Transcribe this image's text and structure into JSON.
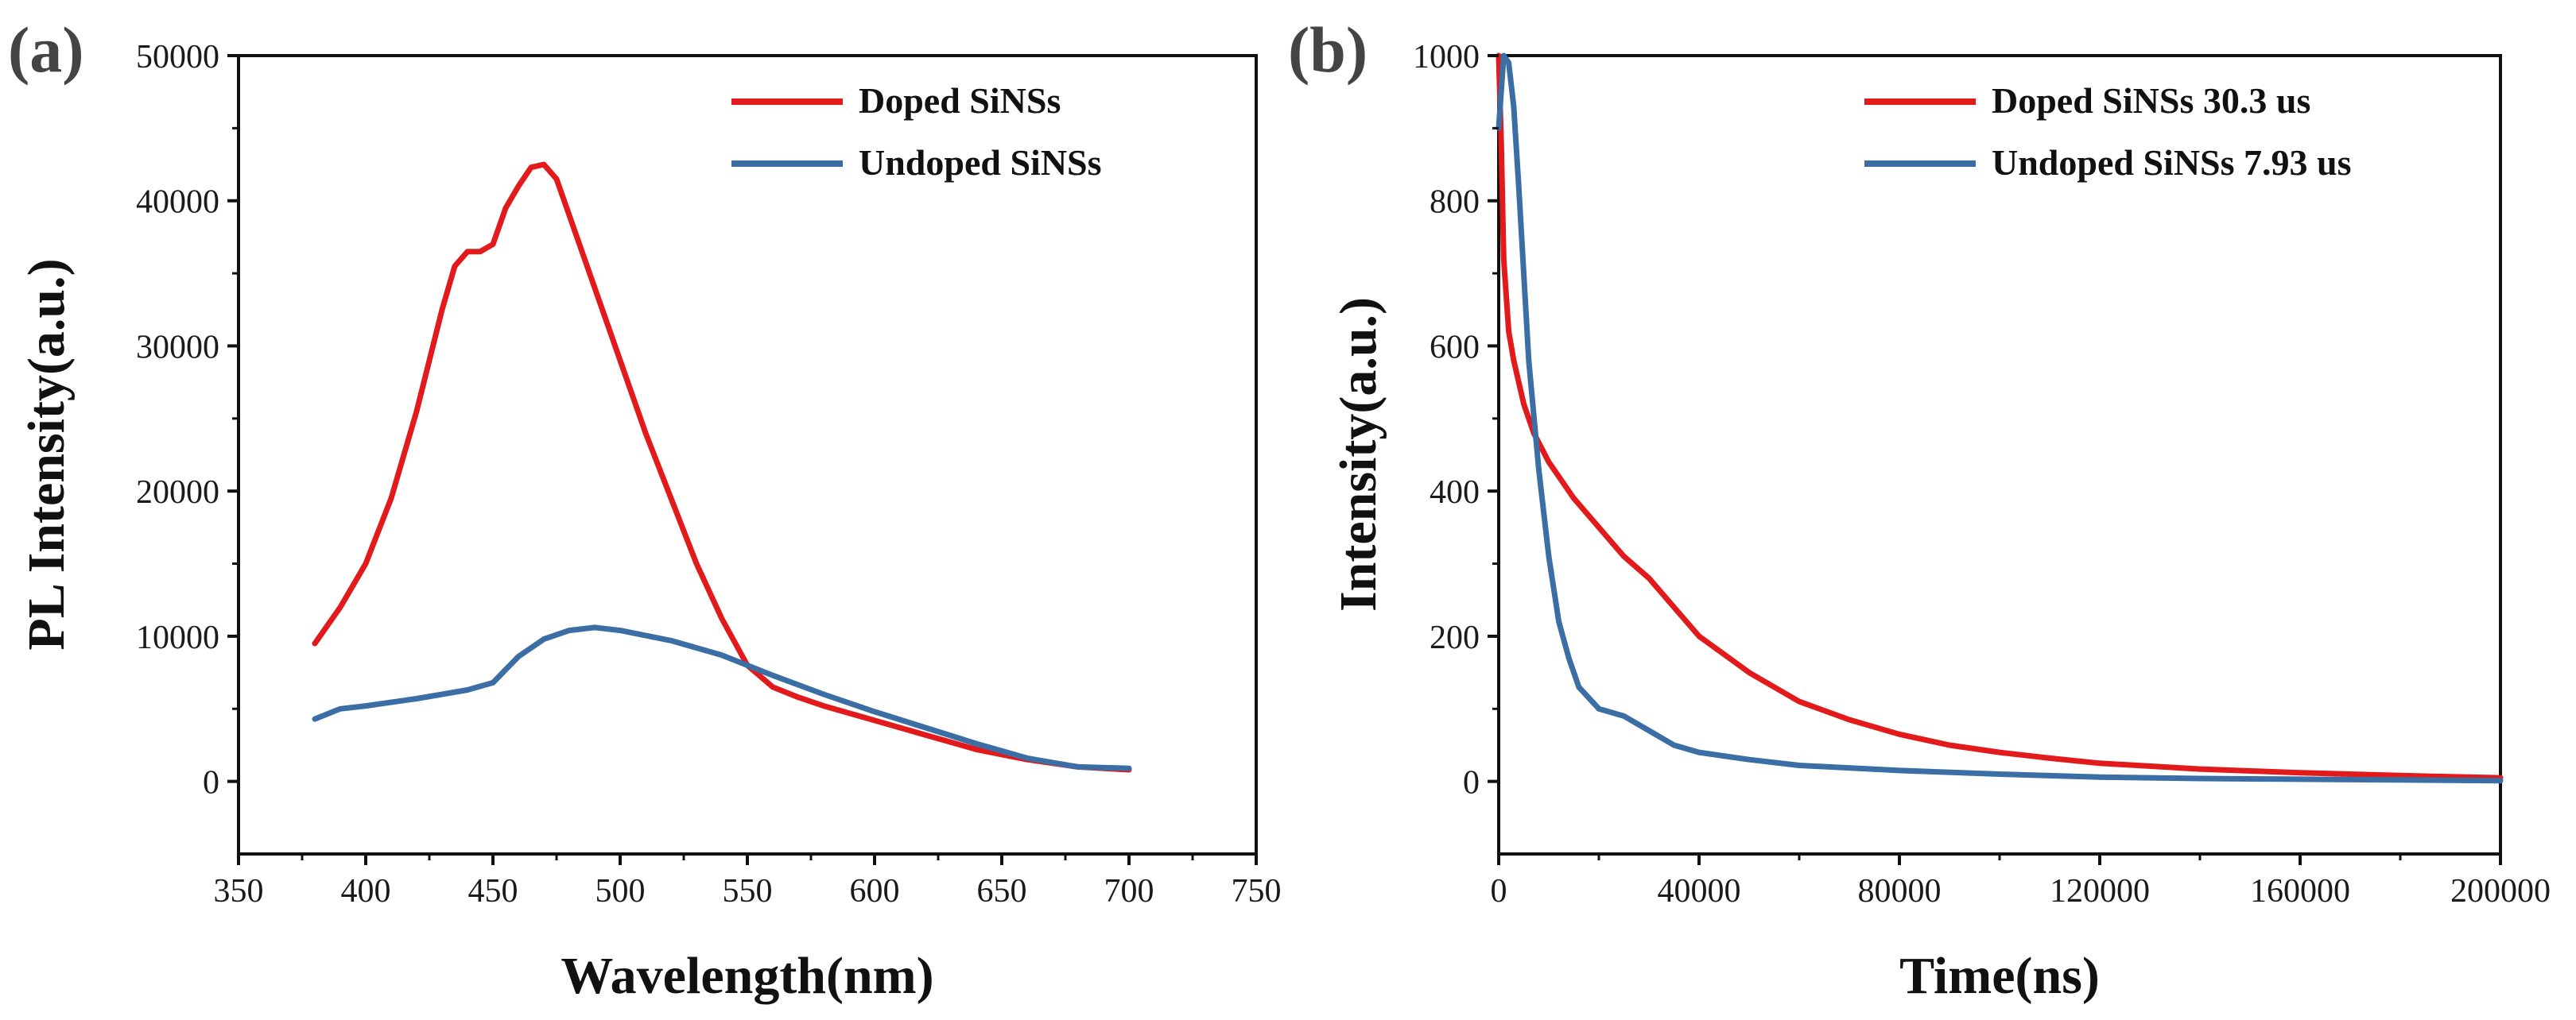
{
  "chart_data": [
    {
      "type": "line",
      "panel_label": "(a)",
      "xlabel": "Wavelength(nm)",
      "ylabel": "PL Intensity(a.u.)",
      "xlim": [
        350,
        750
      ],
      "ylim": [
        -5000,
        50000
      ],
      "xticks": [
        350,
        400,
        450,
        500,
        550,
        600,
        650,
        700,
        750
      ],
      "yticks": [
        0,
        10000,
        20000,
        30000,
        40000,
        50000
      ],
      "legend_position": "top-right",
      "series": [
        {
          "name": "Doped SiNSs",
          "color": "#e31a1c",
          "x": [
            380,
            390,
            400,
            410,
            420,
            430,
            435,
            440,
            445,
            450,
            455,
            460,
            465,
            470,
            475,
            480,
            490,
            500,
            510,
            520,
            530,
            540,
            550,
            560,
            570,
            580,
            600,
            620,
            640,
            660,
            680,
            700
          ],
          "y": [
            9500,
            12000,
            15000,
            19500,
            25500,
            32500,
            35500,
            36500,
            36500,
            37000,
            39500,
            41000,
            42300,
            42500,
            41500,
            39000,
            34000,
            29000,
            24000,
            19500,
            15000,
            11200,
            8000,
            6500,
            5800,
            5200,
            4200,
            3200,
            2200,
            1500,
            1000,
            800
          ]
        },
        {
          "name": "Undoped SiNSs",
          "color": "#3a6ea5",
          "x": [
            380,
            390,
            400,
            420,
            440,
            450,
            460,
            470,
            480,
            490,
            500,
            520,
            540,
            560,
            580,
            600,
            620,
            640,
            660,
            680,
            700
          ],
          "y": [
            4300,
            5000,
            5200,
            5700,
            6300,
            6800,
            8600,
            9800,
            10400,
            10600,
            10400,
            9700,
            8700,
            7300,
            6000,
            4800,
            3700,
            2600,
            1600,
            1000,
            900
          ]
        }
      ]
    },
    {
      "type": "line",
      "panel_label": "(b)",
      "xlabel": "Time(ns)",
      "ylabel": "Intensity(a.u.)",
      "xlim": [
        0,
        200000
      ],
      "ylim": [
        -100,
        1000
      ],
      "xticks": [
        0,
        40000,
        80000,
        120000,
        160000,
        200000
      ],
      "yticks": [
        0,
        200,
        400,
        600,
        800,
        1000
      ],
      "legend_position": "top-right",
      "series": [
        {
          "name": "Doped SiNSs 30.3 us",
          "color": "#e31a1c",
          "x": [
            0,
            500,
            1000,
            2000,
            3000,
            5000,
            7000,
            10000,
            15000,
            20000,
            25000,
            30000,
            35000,
            40000,
            50000,
            60000,
            70000,
            80000,
            90000,
            100000,
            110000,
            120000,
            140000,
            160000,
            180000,
            200000
          ],
          "y": [
            1000,
            880,
            720,
            620,
            580,
            520,
            480,
            440,
            390,
            350,
            310,
            280,
            240,
            200,
            150,
            110,
            85,
            65,
            50,
            40,
            32,
            25,
            17,
            12,
            8,
            5
          ]
        },
        {
          "name": "Undoped SiNSs 7.93 us",
          "color": "#3a6ea5",
          "x": [
            0,
            1000,
            2000,
            3000,
            4000,
            5000,
            6000,
            8000,
            10000,
            12000,
            14000,
            16000,
            20000,
            25000,
            30000,
            35000,
            40000,
            50000,
            60000,
            80000,
            100000,
            120000,
            140000,
            160000,
            180000,
            200000
          ],
          "y": [
            900,
            1000,
            990,
            930,
            820,
            700,
            580,
            430,
            310,
            220,
            170,
            130,
            100,
            90,
            70,
            50,
            40,
            30,
            22,
            15,
            10,
            6,
            4,
            3,
            2,
            1
          ]
        }
      ]
    }
  ]
}
